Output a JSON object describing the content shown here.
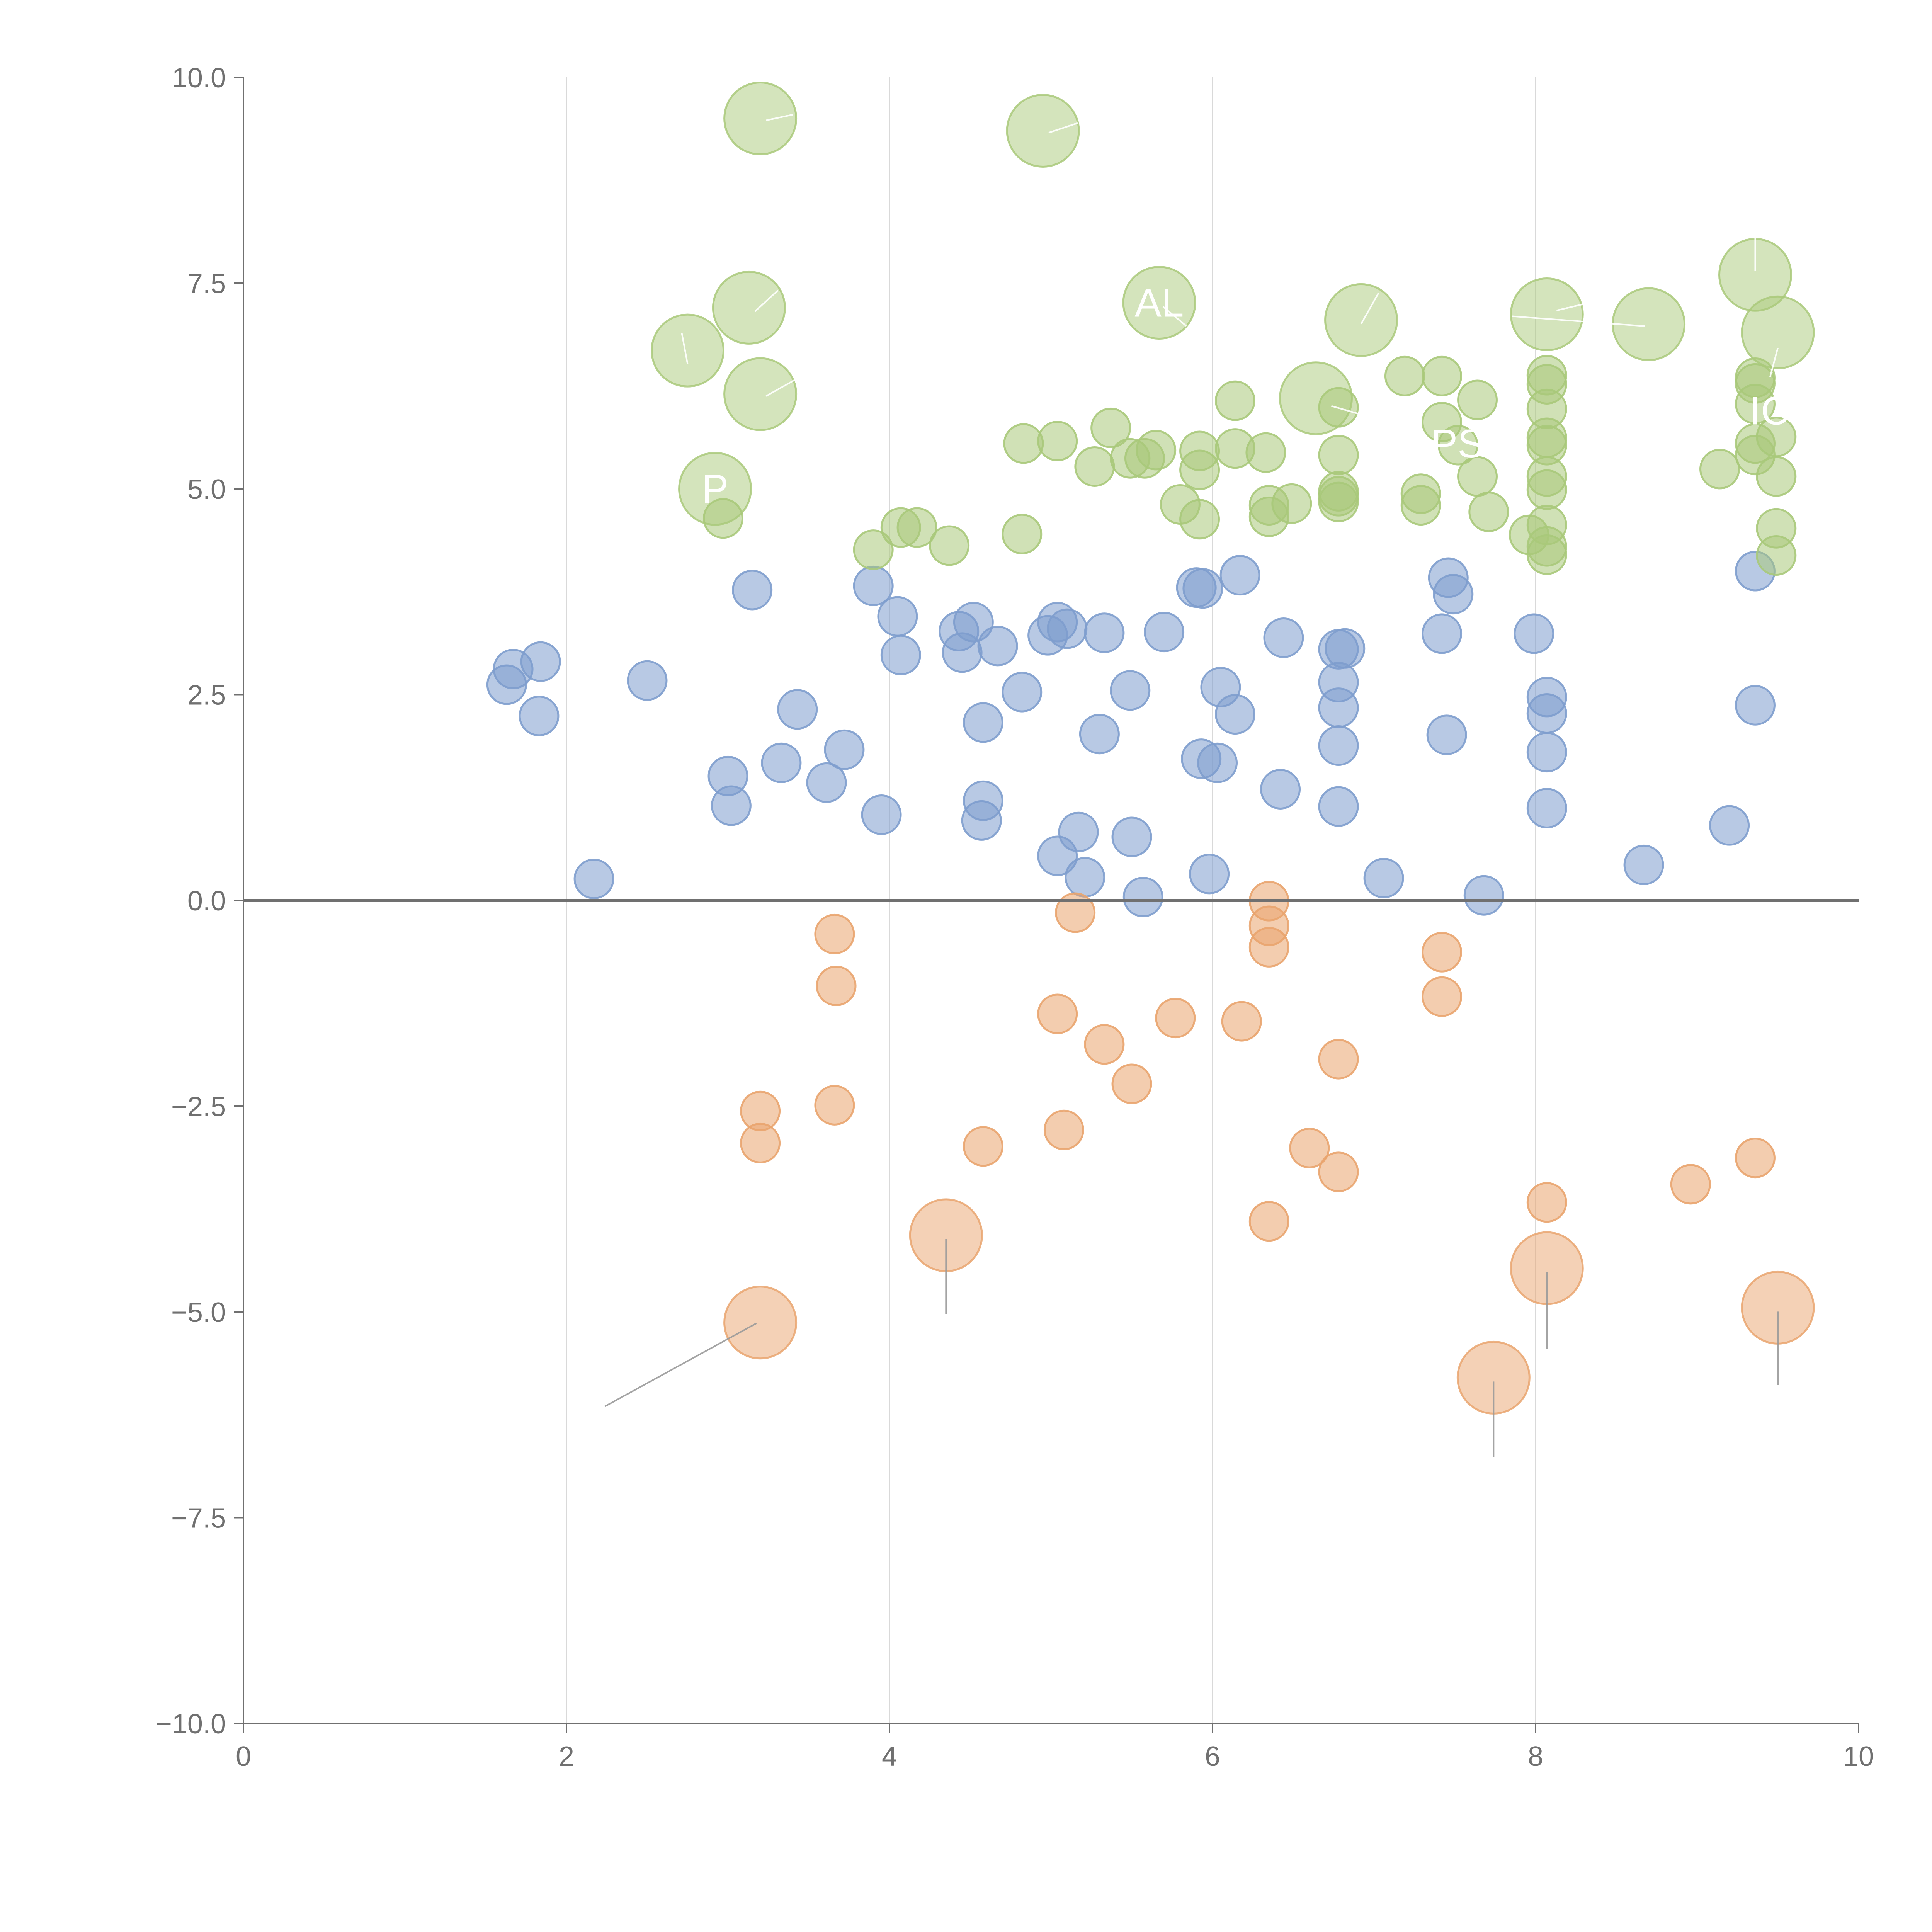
{
  "chart_data": {
    "type": "scatter",
    "title": "",
    "xlabel": "",
    "ylabel": "",
    "xlim": [
      0,
      10
    ],
    "ylim": [
      -10,
      10
    ],
    "grid": "vertical",
    "x_ticks": [
      "0",
      "2",
      "4",
      "6",
      "8",
      "10"
    ],
    "y_ticks": [
      "10.0",
      "7.5",
      "5.0",
      "2.5",
      "0.0",
      "−2.5",
      "−5.0",
      "−7.5",
      "−10.0"
    ],
    "colors": {
      "green": "#a9c97a",
      "blue": "#7e9dcd",
      "orange": "#e9a46e",
      "axis": "#707070",
      "grid": "#d9d9d9",
      "leader_light": "#ffffff",
      "leader_dark": "#9a9a9a"
    },
    "series": [
      {
        "name": "blue",
        "color": "#7e9dcd",
        "points": [
          [
            1.63,
            2.62
          ],
          [
            1.67,
            2.81
          ],
          [
            1.84,
            2.9
          ],
          [
            1.83,
            2.24
          ],
          [
            2.5,
            2.67
          ],
          [
            2.17,
            0.26
          ],
          [
            3.0,
            1.51
          ],
          [
            3.02,
            1.15
          ],
          [
            3.15,
            3.77
          ],
          [
            3.33,
            1.67
          ],
          [
            3.43,
            2.32
          ],
          [
            3.61,
            1.43
          ],
          [
            3.72,
            1.83
          ],
          [
            3.9,
            3.82
          ],
          [
            3.95,
            1.04
          ],
          [
            4.05,
            3.45
          ],
          [
            4.07,
            2.98
          ],
          [
            4.43,
            3.27
          ],
          [
            4.45,
            3.01
          ],
          [
            4.52,
            3.38
          ],
          [
            4.57,
            0.97
          ],
          [
            4.58,
            1.21
          ],
          [
            4.58,
            2.16
          ],
          [
            4.67,
            3.09
          ],
          [
            4.82,
            2.53
          ],
          [
            4.98,
            3.22
          ],
          [
            5.04,
            3.38
          ],
          [
            5.04,
            0.54
          ],
          [
            5.1,
            3.3
          ],
          [
            5.17,
            0.83
          ],
          [
            5.21,
            0.28
          ],
          [
            5.3,
            2.02
          ],
          [
            5.33,
            3.25
          ],
          [
            5.49,
            2.55
          ],
          [
            5.5,
            0.77
          ],
          [
            5.57,
            0.04
          ],
          [
            5.7,
            3.26
          ],
          [
            5.9,
            3.8
          ],
          [
            5.94,
            3.79
          ],
          [
            5.93,
            1.72
          ],
          [
            5.98,
            0.32
          ],
          [
            6.03,
            1.67
          ],
          [
            6.05,
            2.59
          ],
          [
            6.14,
            2.26
          ],
          [
            6.17,
            3.95
          ],
          [
            6.42,
            1.35
          ],
          [
            6.44,
            3.19
          ],
          [
            6.78,
            3.05
          ],
          [
            6.82,
            3.06
          ],
          [
            6.78,
            2.65
          ],
          [
            6.78,
            2.34
          ],
          [
            6.78,
            1.88
          ],
          [
            6.78,
            1.14
          ],
          [
            7.06,
            0.27
          ],
          [
            7.42,
            3.24
          ],
          [
            7.46,
            3.92
          ],
          [
            7.49,
            3.72
          ],
          [
            7.45,
            2.01
          ],
          [
            7.68,
            0.06
          ],
          [
            7.99,
            3.24
          ],
          [
            8.07,
            2.47
          ],
          [
            8.07,
            2.27
          ],
          [
            8.07,
            1.8
          ],
          [
            8.07,
            1.12
          ],
          [
            8.67,
            0.43
          ],
          [
            9.2,
            0.91
          ],
          [
            9.36,
            4.0
          ],
          [
            9.36,
            2.37
          ]
        ]
      },
      {
        "name": "orange",
        "color": "#e9a46e",
        "points": [
          [
            3.66,
            -0.41
          ],
          [
            3.67,
            -1.04
          ],
          [
            3.2,
            -2.56
          ],
          [
            3.2,
            -2.95
          ],
          [
            3.66,
            -2.49
          ],
          [
            4.58,
            -2.99
          ],
          [
            5.04,
            -1.38
          ],
          [
            5.08,
            -2.79
          ],
          [
            5.15,
            -0.15
          ],
          [
            5.33,
            -1.75
          ],
          [
            5.5,
            -2.23
          ],
          [
            5.77,
            -1.43
          ],
          [
            6.18,
            -1.47
          ],
          [
            6.35,
            -0.01
          ],
          [
            6.35,
            -0.31
          ],
          [
            6.35,
            -0.57
          ],
          [
            6.35,
            -3.9
          ],
          [
            6.6,
            -3.01
          ],
          [
            6.78,
            -1.93
          ],
          [
            6.78,
            -3.3
          ],
          [
            7.42,
            -0.63
          ],
          [
            7.42,
            -1.17
          ],
          [
            8.07,
            -3.67
          ],
          [
            8.96,
            -3.45
          ],
          [
            9.36,
            -3.13
          ]
        ]
      },
      {
        "name": "green",
        "color": "#a9c97a",
        "points": [
          [
            2.97,
            4.64
          ],
          [
            3.9,
            4.26
          ],
          [
            4.07,
            4.53
          ],
          [
            4.17,
            4.53
          ],
          [
            4.37,
            4.31
          ],
          [
            4.82,
            4.45
          ],
          [
            4.83,
            5.55
          ],
          [
            5.04,
            5.58
          ],
          [
            5.27,
            5.27
          ],
          [
            5.37,
            5.74
          ],
          [
            5.49,
            5.37
          ],
          [
            5.58,
            5.37
          ],
          [
            5.65,
            5.47
          ],
          [
            5.8,
            4.81
          ],
          [
            5.92,
            5.46
          ],
          [
            5.92,
            4.63
          ],
          [
            5.92,
            5.23
          ],
          [
            6.14,
            6.07
          ],
          [
            6.14,
            5.49
          ],
          [
            6.33,
            5.44
          ],
          [
            6.35,
            4.8
          ],
          [
            6.35,
            4.66
          ],
          [
            6.49,
            4.82
          ],
          [
            6.78,
            5.99
          ],
          [
            6.78,
            5.41
          ],
          [
            6.78,
            4.97
          ],
          [
            6.78,
            4.91
          ],
          [
            6.78,
            4.84
          ],
          [
            7.19,
            6.37
          ],
          [
            7.29,
            4.94
          ],
          [
            7.29,
            4.8
          ],
          [
            7.42,
            6.37
          ],
          [
            7.42,
            5.81
          ],
          [
            7.52,
            5.53
          ],
          [
            7.64,
            6.08
          ],
          [
            7.64,
            5.15
          ],
          [
            7.71,
            4.72
          ],
          [
            7.96,
            4.44
          ],
          [
            8.07,
            6.38
          ],
          [
            8.07,
            6.27
          ],
          [
            8.07,
            5.97
          ],
          [
            8.07,
            5.62
          ],
          [
            8.07,
            5.53
          ],
          [
            8.07,
            5.15
          ],
          [
            8.07,
            4.99
          ],
          [
            8.07,
            4.56
          ],
          [
            8.07,
            4.3
          ],
          [
            8.07,
            4.2
          ],
          [
            9.14,
            5.24
          ],
          [
            9.36,
            6.35
          ],
          [
            9.36,
            6.28
          ],
          [
            9.36,
            6.03
          ],
          [
            9.36,
            5.55
          ],
          [
            9.36,
            5.41
          ],
          [
            9.49,
            5.63
          ],
          [
            9.49,
            5.15
          ],
          [
            9.49,
            4.52
          ],
          [
            9.49,
            4.19
          ]
        ]
      }
    ],
    "highlighted": [
      {
        "series": "green",
        "x": 3.2,
        "y": 9.5,
        "label": ""
      },
      {
        "series": "green",
        "x": 4.95,
        "y": 9.35,
        "label": ""
      },
      {
        "series": "green",
        "x": 3.13,
        "y": 7.2,
        "label": ""
      },
      {
        "series": "green",
        "x": 2.75,
        "y": 6.68,
        "label": ""
      },
      {
        "series": "green",
        "x": 3.2,
        "y": 6.15,
        "label": ""
      },
      {
        "series": "green",
        "x": 2.92,
        "y": 5.0,
        "label": "P"
      },
      {
        "series": "green",
        "x": 5.67,
        "y": 7.26,
        "label": "AL"
      },
      {
        "series": "green",
        "x": 6.92,
        "y": 7.05,
        "label": ""
      },
      {
        "series": "green",
        "x": 6.64,
        "y": 6.1,
        "label": ""
      },
      {
        "series": "green",
        "x": 8.07,
        "y": 7.12,
        "label": ""
      },
      {
        "series": "green",
        "x": 8.7,
        "y": 7.0,
        "label": ""
      },
      {
        "series": "green",
        "x": 9.36,
        "y": 7.6,
        "label": ""
      },
      {
        "series": "green",
        "x": 9.5,
        "y": 6.9,
        "label": ""
      },
      {
        "series": "orange",
        "x": 3.2,
        "y": -5.13,
        "label": ""
      },
      {
        "series": "orange",
        "x": 4.35,
        "y": -4.07,
        "label": ""
      },
      {
        "series": "orange",
        "x": 7.74,
        "y": -5.8,
        "label": ""
      },
      {
        "series": "orange",
        "x": 8.07,
        "y": -4.47,
        "label": ""
      },
      {
        "series": "orange",
        "x": 9.5,
        "y": -4.95,
        "label": ""
      }
    ],
    "annotations": [
      {
        "text": "PSP",
        "x": 7.6,
        "y": 5.55
      },
      {
        "text": "IC",
        "x": 9.45,
        "y": 5.95
      }
    ]
  }
}
